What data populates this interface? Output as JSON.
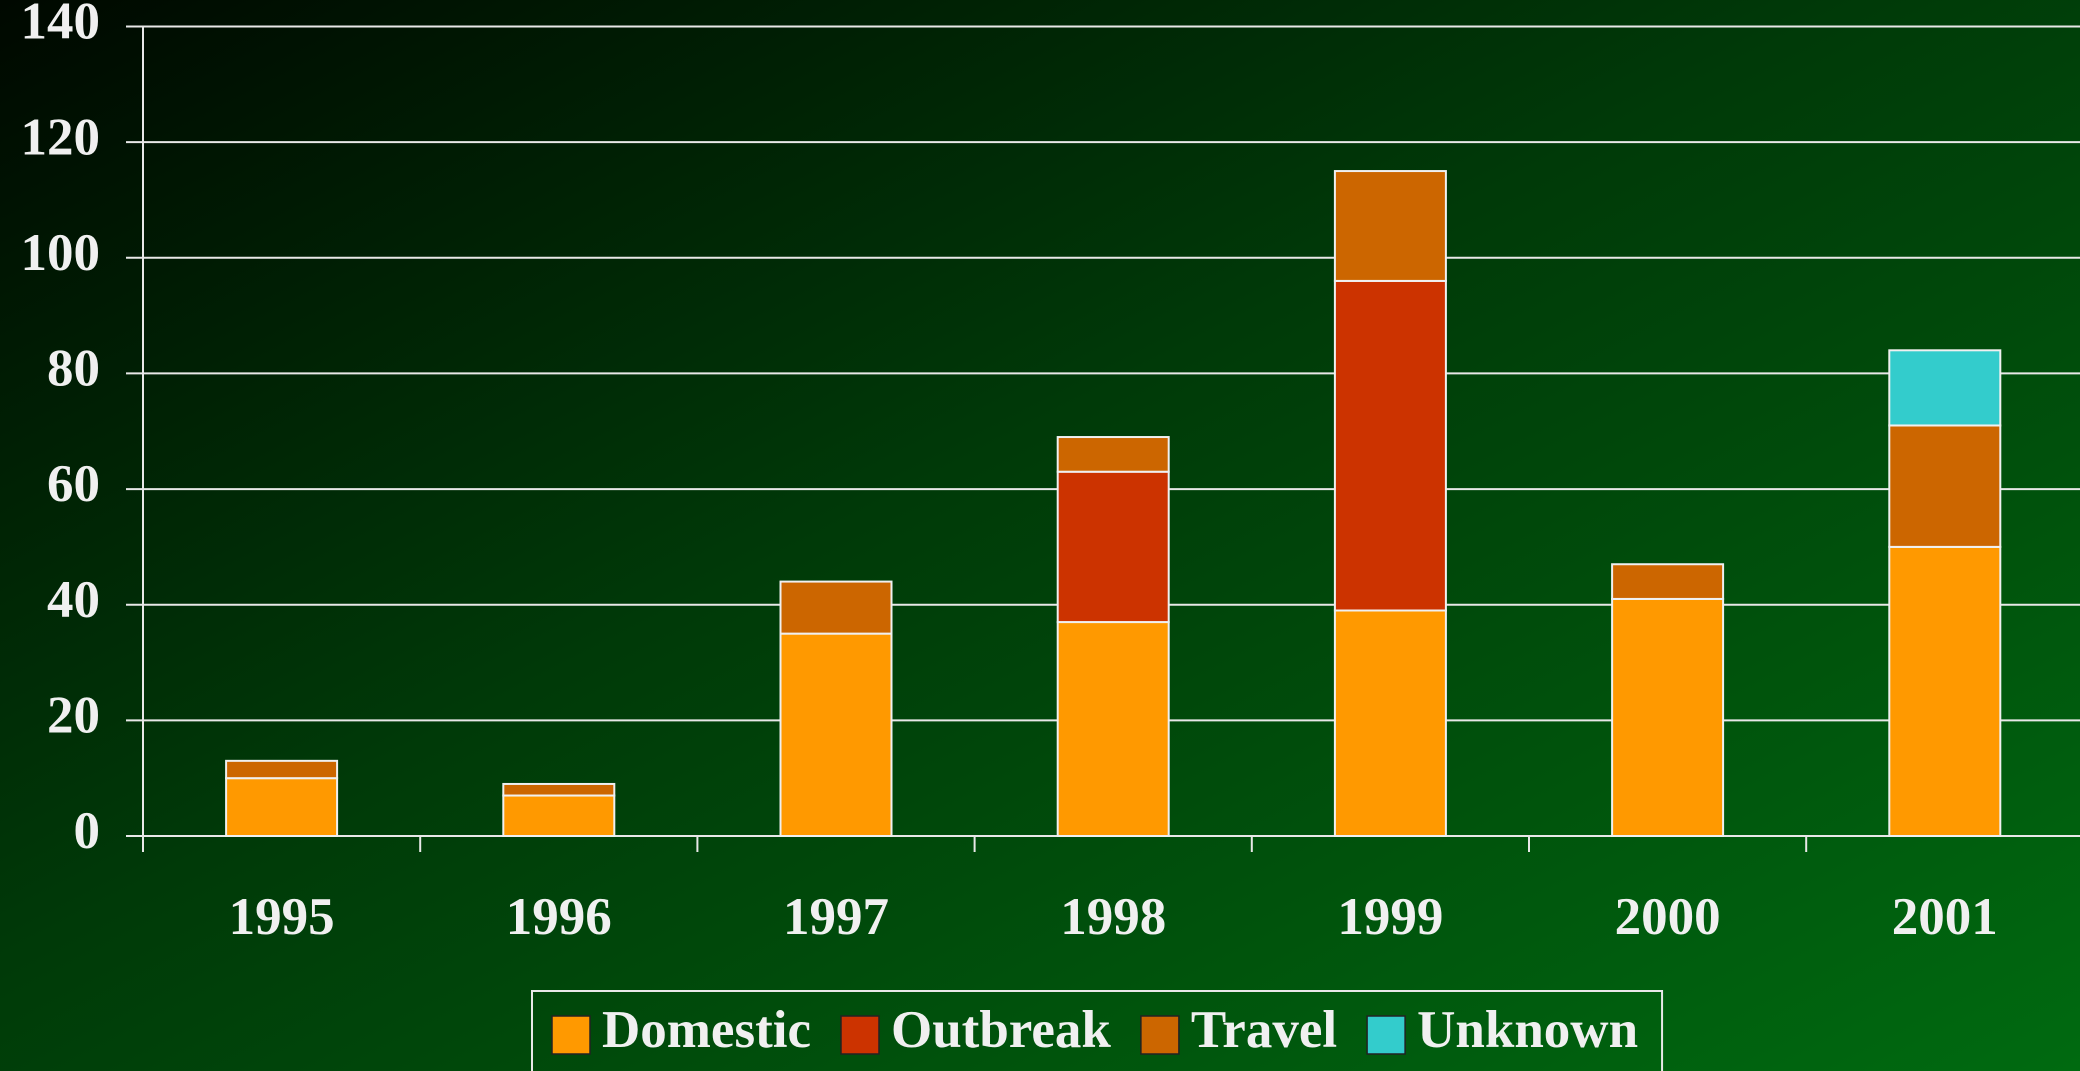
{
  "chart_data": {
    "type": "stacked_bar",
    "categories": [
      "1995",
      "1996",
      "1997",
      "1998",
      "1999",
      "2000",
      "2001"
    ],
    "series": [
      {
        "name": "Domestic",
        "color": "#ff9900",
        "values": [
          10,
          7,
          35,
          37,
          39,
          41,
          50
        ]
      },
      {
        "name": "Outbreak",
        "color": "#cc3300",
        "values": [
          0,
          0,
          0,
          26,
          57,
          0,
          0
        ]
      },
      {
        "name": "Travel",
        "color": "#cc6600",
        "values": [
          3,
          2,
          9,
          6,
          19,
          6,
          21
        ]
      },
      {
        "name": "Unknown",
        "color": "#33cccc",
        "values": [
          0,
          0,
          0,
          0,
          0,
          0,
          13
        ]
      }
    ],
    "ylim": [
      0,
      140
    ],
    "yticks": [
      0,
      20,
      40,
      60,
      80,
      100,
      120,
      140
    ],
    "grid": true,
    "legend": "bottom"
  }
}
